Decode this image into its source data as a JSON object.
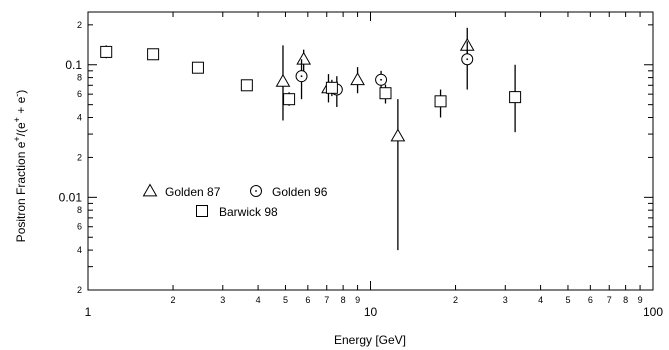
{
  "chart_data": {
    "type": "scatter",
    "title": "",
    "xlabel": "Energy [GeV]",
    "ylabel_main": "Positron Fraction e",
    "ylabel_sup1": "+",
    "ylabel_mid": "/(e",
    "ylabel_sup2": "+",
    "ylabel_mid2": " + e",
    "ylabel_sup3": "-",
    "ylabel_end": ")",
    "xscale": "log",
    "yscale": "log",
    "xlim": [
      1,
      100
    ],
    "ylim": [
      0.002,
      0.25
    ],
    "grid": false,
    "legend_position": "left-middle",
    "x_major_ticks": [
      {
        "v": 1,
        "label": "1"
      },
      {
        "v": 10,
        "label": "10"
      },
      {
        "v": 100,
        "label": "100"
      }
    ],
    "x_minor_ticks": [
      {
        "v": 2,
        "label": "2"
      },
      {
        "v": 3,
        "label": "3"
      },
      {
        "v": 4,
        "label": "4"
      },
      {
        "v": 5,
        "label": "5"
      },
      {
        "v": 6,
        "label": "6"
      },
      {
        "v": 7,
        "label": "7"
      },
      {
        "v": 8,
        "label": "8"
      },
      {
        "v": 9,
        "label": "9"
      },
      {
        "v": 20,
        "label": "2"
      },
      {
        "v": 30,
        "label": "3"
      },
      {
        "v": 40,
        "label": "4"
      },
      {
        "v": 50,
        "label": "5"
      },
      {
        "v": 60,
        "label": "6"
      },
      {
        "v": 70,
        "label": "7"
      },
      {
        "v": 80,
        "label": "8"
      },
      {
        "v": 90,
        "label": "9"
      }
    ],
    "y_major_ticks": [
      {
        "v": 0.01,
        "label": "0.01"
      },
      {
        "v": 0.1,
        "label": "0.1"
      }
    ],
    "y_minor_ticks": [
      {
        "v": 0.002,
        "label": "2"
      },
      {
        "v": 0.004,
        "label": "4"
      },
      {
        "v": 0.006,
        "label": "6"
      },
      {
        "v": 0.008,
        "label": "8"
      },
      {
        "v": 0.02,
        "label": "2"
      },
      {
        "v": 0.04,
        "label": "4"
      },
      {
        "v": 0.06,
        "label": "6"
      },
      {
        "v": 0.08,
        "label": "8"
      },
      {
        "v": 0.2,
        "label": "2"
      }
    ],
    "y_unlabeled_ticks": [
      0.003,
      0.005,
      0.007,
      0.009,
      0.03,
      0.05,
      0.07,
      0.09
    ],
    "series": [
      {
        "name": "Golden 87",
        "marker": "triangle",
        "points": [
          {
            "x": 4.9,
            "y": 0.075,
            "ylo": 0.038,
            "yhi": 0.14
          },
          {
            "x": 5.8,
            "y": 0.11,
            "ylo": 0.088,
            "yhi": 0.13
          },
          {
            "x": 7.1,
            "y": 0.067,
            "ylo": 0.052,
            "yhi": 0.085
          },
          {
            "x": 9.0,
            "y": 0.077,
            "ylo": 0.061,
            "yhi": 0.096
          },
          {
            "x": 12.5,
            "y": 0.029,
            "ylo": 0.004,
            "yhi": 0.055
          },
          {
            "x": 22.0,
            "y": 0.14,
            "ylo": 0.1,
            "yhi": 0.19
          }
        ]
      },
      {
        "name": "Golden 96",
        "marker": "circle",
        "points": [
          {
            "x": 5.7,
            "y": 0.082,
            "ylo": 0.055,
            "yhi": 0.11
          },
          {
            "x": 7.6,
            "y": 0.065,
            "ylo": 0.048,
            "yhi": 0.082
          },
          {
            "x": 10.9,
            "y": 0.077,
            "ylo": 0.064,
            "yhi": 0.09
          },
          {
            "x": 22.0,
            "y": 0.11,
            "ylo": 0.065,
            "yhi": 0.15
          }
        ]
      },
      {
        "name": "Barwick 98",
        "marker": "square",
        "points": [
          {
            "x": 1.16,
            "y": 0.125,
            "ylo": 0.112,
            "yhi": 0.14
          },
          {
            "x": 1.7,
            "y": 0.12,
            "ylo": 0.11,
            "yhi": 0.132
          },
          {
            "x": 2.45,
            "y": 0.095,
            "ylo": 0.087,
            "yhi": 0.104
          },
          {
            "x": 3.65,
            "y": 0.07,
            "ylo": 0.065,
            "yhi": 0.076
          },
          {
            "x": 5.15,
            "y": 0.055,
            "ylo": 0.049,
            "yhi": 0.062
          },
          {
            "x": 7.3,
            "y": 0.067,
            "ylo": 0.058,
            "yhi": 0.077
          },
          {
            "x": 11.3,
            "y": 0.061,
            "ylo": 0.051,
            "yhi": 0.071
          },
          {
            "x": 17.7,
            "y": 0.053,
            "ylo": 0.04,
            "yhi": 0.065
          },
          {
            "x": 32.5,
            "y": 0.057,
            "ylo": 0.031,
            "yhi": 0.1
          }
        ]
      }
    ],
    "legend": [
      {
        "name": "Golden 87",
        "marker": "triangle"
      },
      {
        "name": "Golden 96",
        "marker": "circle"
      },
      {
        "name": "Barwick 98",
        "marker": "square"
      }
    ]
  }
}
